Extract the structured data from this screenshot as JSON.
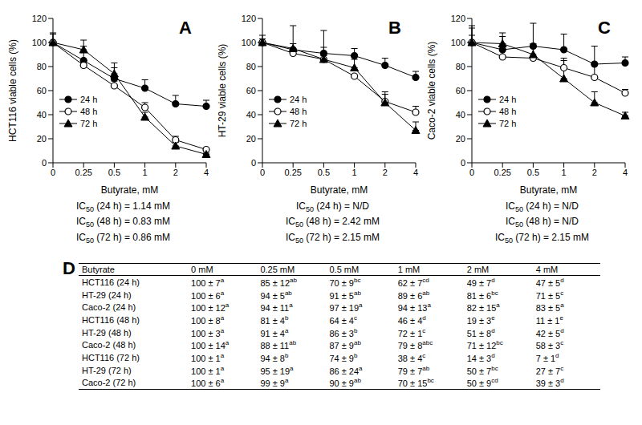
{
  "chart_data": [
    {
      "type": "line",
      "title": "A",
      "y_label": "HCT116 viable cells (%)",
      "x_label": "Butyrate, mM",
      "categories": [
        "0",
        "0.25",
        "0.5",
        "1",
        "2",
        "4"
      ],
      "ylim": [
        0,
        120
      ],
      "yticks": [
        0,
        20,
        40,
        60,
        80,
        100,
        120
      ],
      "grid": false,
      "legend": "left",
      "series": [
        {
          "name": "24 h",
          "color": "#000000",
          "marker": "circle",
          "values": [
            100,
            85,
            70,
            62,
            49,
            47
          ],
          "errors": [
            7,
            12,
            9,
            7,
            7,
            5
          ]
        },
        {
          "name": "48 h",
          "color": "#000000",
          "marker": "open_circle",
          "values": [
            100,
            81,
            64,
            46,
            19,
            11
          ],
          "errors": [
            8,
            4,
            4,
            4,
            3,
            1
          ]
        },
        {
          "name": "72 h",
          "color": "#000000",
          "marker": "triangle",
          "values": [
            100,
            94,
            74,
            38,
            14,
            7
          ],
          "errors": [
            1,
            8,
            9,
            4,
            3,
            1
          ]
        }
      ],
      "annotations": [
        "IC50 (24 h) = 1.14 mM",
        "IC50 (48 h) = 0.83 mM",
        "IC50 (72 h) = 0.86 mM"
      ]
    },
    {
      "type": "line",
      "title": "B",
      "y_label": "HT-29 viable cells (%)",
      "x_label": "Butyrate, mM",
      "categories": [
        "0",
        "0.25",
        "0.5",
        "1",
        "2",
        "4"
      ],
      "ylim": [
        0,
        120
      ],
      "yticks": [
        0,
        20,
        40,
        60,
        80,
        100,
        120
      ],
      "grid": false,
      "legend": "left",
      "series": [
        {
          "name": "24 h",
          "color": "#000000",
          "marker": "circle",
          "values": [
            100,
            94,
            91,
            89,
            81,
            71
          ],
          "errors": [
            6,
            5,
            5,
            6,
            6,
            5
          ]
        },
        {
          "name": "48 h",
          "color": "#000000",
          "marker": "open_circle",
          "values": [
            100,
            91,
            86,
            72,
            51,
            42
          ],
          "errors": [
            3,
            4,
            3,
            1,
            8,
            5
          ]
        },
        {
          "name": "72 h",
          "color": "#000000",
          "marker": "triangle",
          "values": [
            100,
            95,
            86,
            79,
            50,
            27
          ],
          "errors": [
            1,
            19,
            24,
            7,
            7,
            7
          ]
        }
      ],
      "annotations": [
        "IC50 (24 h) = N/D",
        "IC50 (48 h) = 2.42 mM",
        "IC50 (72 h) = 2.15 mM"
      ]
    },
    {
      "type": "line",
      "title": "C",
      "y_label": "Caco-2 viable cells (%)",
      "x_label": "Butyrate, mM",
      "categories": [
        "0",
        "0.25",
        "0.5",
        "1",
        "2",
        "4"
      ],
      "ylim": [
        0,
        120
      ],
      "yticks": [
        0,
        20,
        40,
        60,
        80,
        100,
        120
      ],
      "grid": false,
      "legend": "left",
      "series": [
        {
          "name": "24 h",
          "color": "#000000",
          "marker": "circle",
          "values": [
            100,
            94,
            97,
            94,
            82,
            83
          ],
          "errors": [
            12,
            11,
            19,
            13,
            15,
            5
          ]
        },
        {
          "name": "48 h",
          "color": "#000000",
          "marker": "open_circle",
          "values": [
            100,
            88,
            87,
            79,
            71,
            58
          ],
          "errors": [
            14,
            11,
            9,
            8,
            12,
            3
          ]
        },
        {
          "name": "72 h",
          "color": "#000000",
          "marker": "triangle",
          "values": [
            100,
            99,
            90,
            70,
            50,
            39
          ],
          "errors": [
            6,
            9,
            9,
            15,
            9,
            3
          ]
        }
      ],
      "annotations": [
        "IC50 (24 h) = N/D",
        "IC50 (48 h) = N/D",
        "IC50 (72 h) = 2.15 mM"
      ]
    }
  ],
  "table": {
    "title": "D",
    "header": [
      "Butyrate",
      "0 mM",
      "0.25 mM",
      "0.5 mM",
      "1 mM",
      "2 mM",
      "4 mM"
    ],
    "rows": [
      {
        "label": "HCT116 (24 h)",
        "cells": [
          [
            "100 ± 7",
            "a"
          ],
          [
            "85 ± 12",
            "ab"
          ],
          [
            "70 ± 9",
            "bc"
          ],
          [
            "62 ± 7",
            "cd"
          ],
          [
            "49 ± 7",
            "d"
          ],
          [
            "47 ± 5",
            "d"
          ]
        ]
      },
      {
        "label": "HT-29 (24 h)",
        "cells": [
          [
            "100 ± 6",
            "a"
          ],
          [
            "94 ± 5",
            "ab"
          ],
          [
            "91 ± 5",
            "ab"
          ],
          [
            "89 ± 6",
            "ab"
          ],
          [
            "81 ± 6",
            "bc"
          ],
          [
            "71 ± 5",
            "c"
          ]
        ]
      },
      {
        "label": "Caco-2 (24 h)",
        "cells": [
          [
            "100 ± 12",
            "a"
          ],
          [
            "94 ± 11",
            "a"
          ],
          [
            "97 ± 19",
            "a"
          ],
          [
            "94 ± 13",
            "a"
          ],
          [
            "82 ± 15",
            "a"
          ],
          [
            "83 ± 5",
            "a"
          ]
        ]
      },
      {
        "label": "HCT116 (48 h)",
        "cells": [
          [
            "100 ± 8",
            "a"
          ],
          [
            "81 ± 4",
            "b"
          ],
          [
            "64 ± 4",
            "c"
          ],
          [
            "46 ± 4",
            "d"
          ],
          [
            "19 ± 3",
            "e"
          ],
          [
            "11 ± 1",
            "e"
          ]
        ]
      },
      {
        "label": "HT-29 (48 h)",
        "cells": [
          [
            "100 ± 3",
            "a"
          ],
          [
            "91 ± 4",
            "a"
          ],
          [
            "86 ± 3",
            "b"
          ],
          [
            "72 ± 1",
            "c"
          ],
          [
            "51 ± 8",
            "d"
          ],
          [
            "42 ± 5",
            "d"
          ]
        ]
      },
      {
        "label": "Caco-2 (48 h)",
        "cells": [
          [
            "100 ± 14",
            "a"
          ],
          [
            "88 ± 11",
            "ab"
          ],
          [
            "87 ± 9",
            "ab"
          ],
          [
            "79 ± 8",
            "abc"
          ],
          [
            "71 ± 12",
            "bc"
          ],
          [
            "58 ± 3",
            "c"
          ]
        ]
      },
      {
        "label": "HCT116 (72 h)",
        "cells": [
          [
            "100 ± 1",
            "a"
          ],
          [
            "94 ± 8",
            "b"
          ],
          [
            "74 ± 9",
            "b"
          ],
          [
            "38 ± 4",
            "c"
          ],
          [
            "14 ± 3",
            "d"
          ],
          [
            "7 ± 1",
            "d"
          ]
        ]
      },
      {
        "label": "HT-29 (72 h)",
        "cells": [
          [
            "100 ± 1",
            "a"
          ],
          [
            "95 ± 19",
            "a"
          ],
          [
            "86 ± 24",
            "a"
          ],
          [
            "79 ± 7",
            "ab"
          ],
          [
            "50 ± 7",
            "bc"
          ],
          [
            "27 ± 7",
            "c"
          ]
        ]
      },
      {
        "label": "Caco-2 (72 h)",
        "cells": [
          [
            "100 ± 6",
            "a"
          ],
          [
            "99 ± 9",
            "a"
          ],
          [
            "90 ± 9",
            "ab"
          ],
          [
            "70 ± 15",
            "bc"
          ],
          [
            "50 ± 9",
            "cd"
          ],
          [
            "39 ± 3",
            "d"
          ]
        ]
      }
    ]
  }
}
